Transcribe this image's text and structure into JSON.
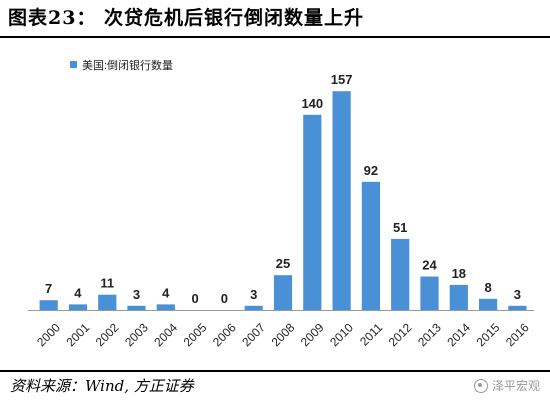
{
  "header": {
    "title": "图表23：  次贷危机后银行倒闭数量上升"
  },
  "footer": {
    "source": "资料来源：Wind, 方正证券",
    "watermark": "泽平宏观",
    "watermark_icon": "wechat-icon"
  },
  "chart_data": {
    "type": "bar",
    "title": "",
    "xlabel": "",
    "ylabel": "",
    "ylim": [
      0,
      165
    ],
    "grid": false,
    "legend_position": "top-left",
    "bar_color": "#4a90d6",
    "categories": [
      "2000",
      "2001",
      "2002",
      "2003",
      "2004",
      "2005",
      "2006",
      "2007",
      "2008",
      "2009",
      "2010",
      "2011",
      "2012",
      "2013",
      "2014",
      "2015",
      "2016"
    ],
    "series": [
      {
        "name": "美国:倒闭银行数量",
        "values": [
          7,
          4,
          11,
          3,
          4,
          0,
          0,
          3,
          25,
          140,
          157,
          92,
          51,
          24,
          18,
          8,
          3
        ]
      }
    ]
  }
}
